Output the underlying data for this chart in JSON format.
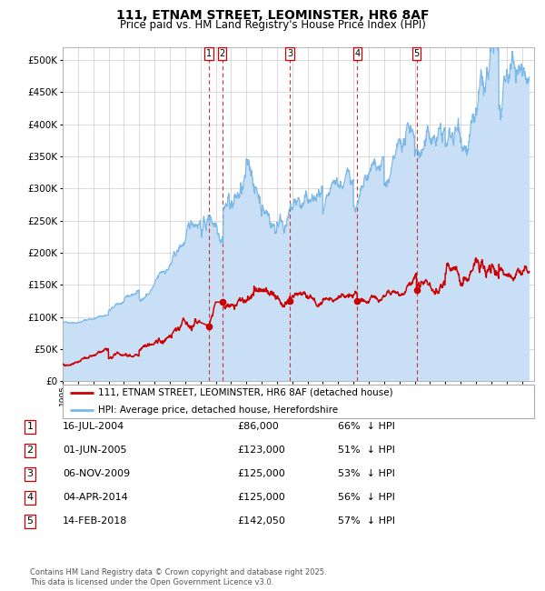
{
  "title": "111, ETNAM STREET, LEOMINSTER, HR6 8AF",
  "subtitle": "Price paid vs. HM Land Registry's House Price Index (HPI)",
  "hpi_color": "#7ab8e8",
  "hpi_fill_color": "#c8dff5",
  "property_color": "#cc0000",
  "vline_color": "#cc3333",
  "background_color": "#ffffff",
  "grid_color": "#cccccc",
  "ylim": [
    0,
    520000
  ],
  "yticks": [
    0,
    50000,
    100000,
    150000,
    200000,
    250000,
    300000,
    350000,
    400000,
    450000,
    500000
  ],
  "ytick_labels": [
    "£0",
    "£50K",
    "£100K",
    "£150K",
    "£200K",
    "£250K",
    "£300K",
    "£350K",
    "£400K",
    "£450K",
    "£500K"
  ],
  "legend_property": "111, ETNAM STREET, LEOMINSTER, HR6 8AF (detached house)",
  "legend_hpi": "HPI: Average price, detached house, Herefordshire",
  "sales": [
    {
      "num": 1,
      "date": "16-JUL-2004",
      "date_x": 2004.54,
      "price": 86000,
      "pct": "66%",
      "dir": "↓"
    },
    {
      "num": 2,
      "date": "01-JUN-2005",
      "date_x": 2005.42,
      "price": 123000,
      "pct": "51%",
      "dir": "↓"
    },
    {
      "num": 3,
      "date": "06-NOV-2009",
      "date_x": 2009.85,
      "price": 125000,
      "pct": "53%",
      "dir": "↓"
    },
    {
      "num": 4,
      "date": "04-APR-2014",
      "date_x": 2014.25,
      "price": 125000,
      "pct": "56%",
      "dir": "↓"
    },
    {
      "num": 5,
      "date": "14-FEB-2018",
      "date_x": 2018.12,
      "price": 142050,
      "pct": "57%",
      "dir": "↓"
    }
  ],
  "footnote": "Contains HM Land Registry data © Crown copyright and database right 2025.\nThis data is licensed under the Open Government Licence v3.0.",
  "xmin": 1995.0,
  "xmax": 2025.8
}
